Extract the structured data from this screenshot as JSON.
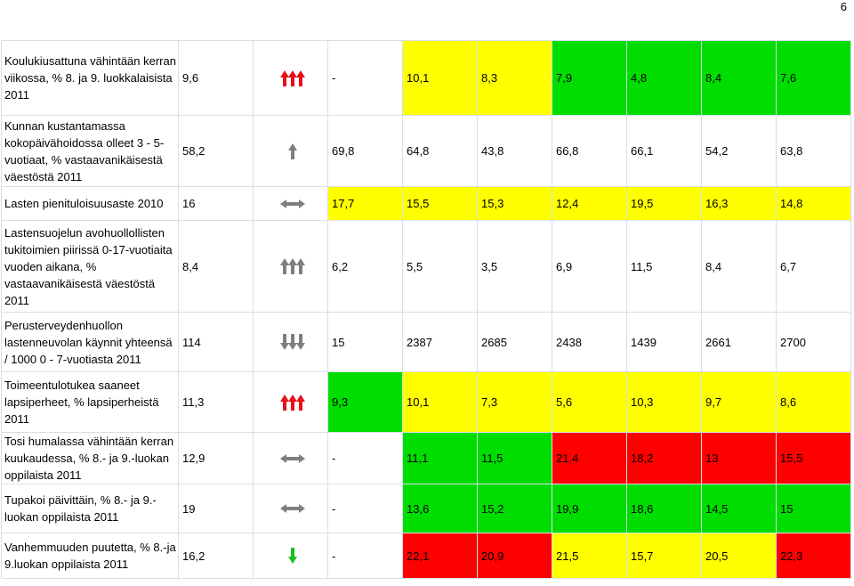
{
  "page_number": "6",
  "colors": {
    "green": "#00dd00",
    "yellow": "#ffff00",
    "red": "#ff0000",
    "arrow_red": "#e8101a",
    "arrow_gray": "#7f7f7f",
    "arrow_green": "#18c020"
  },
  "rows": [
    {
      "label": "Koulukiusattuna vähintään kerran viikossa, % 8. ja 9. luokkalaisista 2011",
      "value": "9,6",
      "indicator": "three-up-red-icon",
      "cells": [
        {
          "v": "-",
          "c": ""
        },
        {
          "v": "10,1",
          "c": "y"
        },
        {
          "v": "8,3",
          "c": "y"
        },
        {
          "v": "7,9",
          "c": "g"
        },
        {
          "v": "4,8",
          "c": "g"
        },
        {
          "v": "8,4",
          "c": "g"
        },
        {
          "v": "7,6",
          "c": "g"
        }
      ]
    },
    {
      "label": "Kunnan kustantamassa kokopäivähoidossa olleet 3 - 5-vuotiaat, % vastaavanikäisestä väestöstä 2011",
      "value": "58,2",
      "indicator": "up-gray-icon",
      "cells": [
        {
          "v": "69,8",
          "c": ""
        },
        {
          "v": "64,8",
          "c": ""
        },
        {
          "v": "43,8",
          "c": ""
        },
        {
          "v": "66,8",
          "c": ""
        },
        {
          "v": "66,1",
          "c": ""
        },
        {
          "v": "54,2",
          "c": ""
        },
        {
          "v": "63,8",
          "c": ""
        }
      ]
    },
    {
      "label": "Lasten pienituloisuusaste 2010",
      "value": "16",
      "indicator": "double-arrow-gray-icon",
      "cells": [
        {
          "v": "17,7",
          "c": "y"
        },
        {
          "v": "15,5",
          "c": "y"
        },
        {
          "v": "15,3",
          "c": "y"
        },
        {
          "v": "12,4",
          "c": "y"
        },
        {
          "v": "19,5",
          "c": "y"
        },
        {
          "v": "16,3",
          "c": "y"
        },
        {
          "v": "14,8",
          "c": "y"
        }
      ]
    },
    {
      "label": "Lastensuojelun avohuollollisten tukitoimien piirissä 0-17-vuotiaita vuoden aikana, % vastaavanikäisestä väestöstä 2011",
      "value": "8,4",
      "indicator": "three-up-gray-icon",
      "cells": [
        {
          "v": "6,2",
          "c": ""
        },
        {
          "v": "5,5",
          "c": ""
        },
        {
          "v": "3,5",
          "c": ""
        },
        {
          "v": "6,9",
          "c": ""
        },
        {
          "v": "11,5",
          "c": ""
        },
        {
          "v": "8,4",
          "c": ""
        },
        {
          "v": "6,7",
          "c": ""
        }
      ]
    },
    {
      "label": "Perusterveydenhuollon lastenneuvolan käynnit yhteensä / 1000 0 - 7-vuotiasta 2011",
      "value": "114",
      "indicator": "three-down-gray-icon",
      "cells": [
        {
          "v": "15",
          "c": ""
        },
        {
          "v": "2387",
          "c": ""
        },
        {
          "v": "2685",
          "c": ""
        },
        {
          "v": "2438",
          "c": ""
        },
        {
          "v": "1439",
          "c": ""
        },
        {
          "v": "2661",
          "c": ""
        },
        {
          "v": "2700",
          "c": ""
        }
      ]
    },
    {
      "label": "Toimeentulotukea saaneet lapsiperheet, % lapsiperheistä 2011",
      "value": "11,3",
      "indicator": "three-up-red-icon",
      "cells": [
        {
          "v": "9,3",
          "c": "g"
        },
        {
          "v": "10,1",
          "c": "y"
        },
        {
          "v": "7,3",
          "c": "y"
        },
        {
          "v": "5,6",
          "c": "y"
        },
        {
          "v": "10,3",
          "c": "y"
        },
        {
          "v": "9,7",
          "c": "y"
        },
        {
          "v": "8,6",
          "c": "y"
        }
      ]
    },
    {
      "label": "Tosi humalassa vähintään kerran kuukaudessa, % 8.- ja 9.-luokan oppilaista 2011",
      "value": "12,9",
      "indicator": "double-arrow-gray-icon",
      "cells": [
        {
          "v": "-",
          "c": ""
        },
        {
          "v": "11,1",
          "c": "g"
        },
        {
          "v": "11,5",
          "c": "g"
        },
        {
          "v": "21,4",
          "c": "r"
        },
        {
          "v": "18,2",
          "c": "r"
        },
        {
          "v": "13",
          "c": "r"
        },
        {
          "v": "15,5",
          "c": "r"
        }
      ]
    },
    {
      "label": "Tupakoi päivittäin, % 8.- ja 9.-luokan oppilaista 2011",
      "value": "19",
      "indicator": "double-arrow-gray-icon",
      "cells": [
        {
          "v": "-",
          "c": ""
        },
        {
          "v": "13,6",
          "c": "g"
        },
        {
          "v": "15,2",
          "c": "g"
        },
        {
          "v": "19,9",
          "c": "g"
        },
        {
          "v": "18,6",
          "c": "g"
        },
        {
          "v": "14,5",
          "c": "g"
        },
        {
          "v": "15",
          "c": "g"
        }
      ]
    },
    {
      "label": "Vanhemmuuden puutetta, % 8.-ja 9.luokan oppilaista 2011",
      "value": "16,2",
      "indicator": "down-green-icon",
      "cells": [
        {
          "v": "-",
          "c": ""
        },
        {
          "v": "22,1",
          "c": "r"
        },
        {
          "v": "20,9",
          "c": "r"
        },
        {
          "v": "21,5",
          "c": "y"
        },
        {
          "v": "15,7",
          "c": "y"
        },
        {
          "v": "20,5",
          "c": "y"
        },
        {
          "v": "22,3",
          "c": "r"
        }
      ]
    }
  ]
}
